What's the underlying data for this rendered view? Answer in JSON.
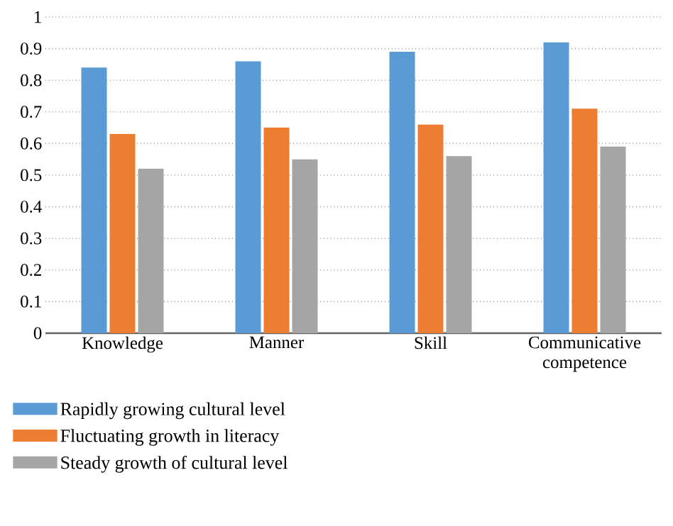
{
  "chart_data": {
    "type": "bar",
    "categories": [
      "Knowledge",
      "Manner",
      "Skill",
      "Communicative competence"
    ],
    "series": [
      {
        "name": "Rapidly growing cultural level",
        "color": "#5b9bd5",
        "values": [
          0.84,
          0.86,
          0.89,
          0.92
        ]
      },
      {
        "name": "Fluctuating growth in literacy",
        "color": "#ed7d31",
        "values": [
          0.63,
          0.65,
          0.66,
          0.71
        ]
      },
      {
        "name": "Steady growth of cultural level",
        "color": "#a5a5a5",
        "values": [
          0.52,
          0.55,
          0.56,
          0.59
        ]
      }
    ],
    "ylim": [
      0,
      1
    ],
    "yticks": [
      0,
      0.1,
      0.2,
      0.3,
      0.4,
      0.5,
      0.6,
      0.7,
      0.8,
      0.9,
      1
    ],
    "grid": "y",
    "legend": "bottom left"
  }
}
